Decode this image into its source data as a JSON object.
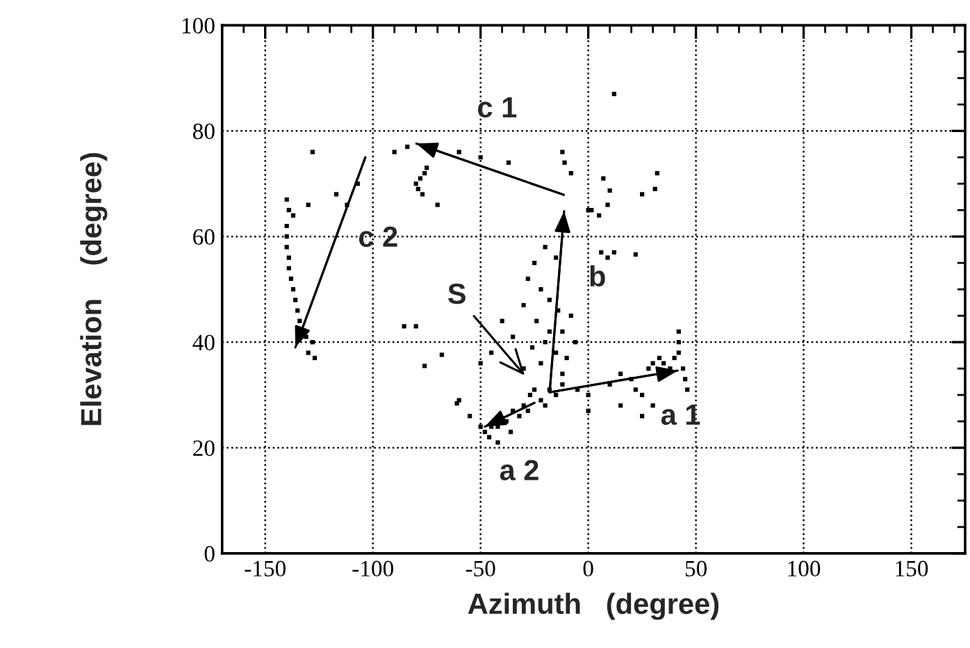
{
  "chart_data": {
    "type": "scatter",
    "xlabel": "Azimuth   (degree)",
    "ylabel": "Elevation    (degree)",
    "xlim": [
      -170,
      175
    ],
    "ylim": [
      0,
      100
    ],
    "xticks": [
      {
        "value": -170,
        "label": null
      },
      {
        "value": -160,
        "label": null
      },
      -150,
      {
        "value": -140,
        "label": null
      },
      {
        "value": -130,
        "label": null
      },
      {
        "value": -120,
        "label": null
      },
      {
        "value": -110,
        "label": null
      },
      -100,
      {
        "value": -90,
        "label": null
      },
      {
        "value": -80,
        "label": null
      },
      {
        "value": -70,
        "label": null
      },
      {
        "value": -60,
        "label": null
      },
      -50,
      {
        "value": -40,
        "label": null
      },
      {
        "value": -30,
        "label": null
      },
      {
        "value": -20,
        "label": null
      },
      {
        "value": -10,
        "label": null
      },
      0,
      {
        "value": 10,
        "label": null
      },
      {
        "value": 20,
        "label": null
      },
      {
        "value": 30,
        "label": null
      },
      {
        "value": 40,
        "label": null
      },
      50,
      {
        "value": 60,
        "label": null
      },
      {
        "value": 70,
        "label": null
      },
      {
        "value": 80,
        "label": null
      },
      {
        "value": 90,
        "label": null
      },
      100,
      {
        "value": 110,
        "label": null
      },
      {
        "value": 120,
        "label": null
      },
      {
        "value": 130,
        "label": null
      },
      {
        "value": 140,
        "label": null
      },
      150,
      {
        "value": 160,
        "label": null
      },
      {
        "value": 170,
        "label": null
      }
    ],
    "yticks": [
      0,
      {
        "value": 5,
        "label": null
      },
      {
        "value": 10,
        "label": null
      },
      {
        "value": 15,
        "label": null
      },
      20,
      {
        "value": 25,
        "label": null
      },
      {
        "value": 30,
        "label": null
      },
      {
        "value": 35,
        "label": null
      },
      40,
      {
        "value": 45,
        "label": null
      },
      {
        "value": 50,
        "label": null
      },
      {
        "value": 55,
        "label": null
      },
      60,
      {
        "value": 65,
        "label": null
      },
      {
        "value": 70,
        "label": null
      },
      {
        "value": 75,
        "label": null
      },
      80,
      {
        "value": 85,
        "label": null
      },
      {
        "value": 90,
        "label": null
      },
      {
        "value": 95,
        "label": null
      },
      100
    ],
    "grid": true,
    "series": [
      {
        "color": "#000000",
        "marker": "square",
        "x": [
          -140,
          -139,
          -140,
          -140,
          -140,
          -139,
          -139,
          -138,
          -137,
          -136,
          -135,
          -134,
          -131,
          -128,
          -130,
          -127,
          -137,
          -130,
          -112,
          -117,
          -128,
          -107,
          -90,
          -84,
          -75,
          -78,
          -80,
          -79,
          -77,
          -76,
          -70,
          -60,
          -50,
          -37,
          -85.5,
          -80,
          -68,
          -76,
          -61,
          -12,
          -11,
          -8,
          12,
          7,
          10,
          9,
          1.5,
          0,
          5,
          32,
          31,
          25,
          6,
          9,
          12,
          22,
          -20,
          -25,
          -28,
          -15,
          -22,
          -18,
          -14,
          -30,
          -24,
          -18,
          -12,
          -20,
          -26,
          -15,
          -10,
          -22,
          -30,
          -12,
          -8,
          -6,
          -35,
          -40,
          -45,
          -50,
          -25,
          -22,
          -20,
          -28,
          -30,
          -32,
          -35,
          -38,
          -42,
          -45,
          -48,
          -50,
          -46,
          -42,
          -36,
          -27,
          -18,
          -15,
          -12,
          -55,
          -60,
          -5,
          0,
          10,
          15,
          20,
          22,
          25,
          28,
          30,
          33,
          35,
          38,
          40,
          42,
          44,
          45,
          42,
          42,
          30,
          25,
          0,
          15,
          46
        ],
        "values": [
          67,
          65,
          62,
          60,
          58,
          56,
          54,
          52,
          50,
          48,
          46,
          44,
          41,
          40,
          38,
          37,
          64,
          66,
          66,
          68,
          76,
          70,
          76,
          77,
          73,
          71,
          70,
          69,
          68,
          72,
          66,
          76,
          75,
          74,
          43,
          43,
          37.6,
          35.5,
          28.4,
          76,
          74,
          72,
          87,
          71,
          68.7,
          66,
          65,
          65,
          64,
          72,
          69,
          68,
          57,
          56,
          57,
          56.6,
          58,
          55,
          52,
          56,
          50,
          48,
          46,
          47,
          44,
          42,
          42,
          40,
          39,
          38,
          37,
          36,
          35,
          34,
          45,
          40,
          41,
          44,
          38,
          36,
          31,
          29,
          28,
          27,
          28,
          26,
          27,
          25,
          24,
          24,
          23,
          24,
          22,
          21,
          23,
          30,
          31,
          30,
          32,
          26,
          29,
          31,
          30,
          32,
          34,
          33,
          31,
          30,
          35,
          36,
          37,
          36,
          35,
          37,
          38,
          35,
          33,
          40,
          42,
          28,
          26,
          27,
          28,
          31
        ]
      },
      {
        "type": "line",
        "color": "#000000",
        "x": [
          -11.4,
          -79.8
        ],
        "values": [
          67.9,
          77.6
        ]
      },
      {
        "type": "line",
        "color": "#000000",
        "x": [
          -103.5,
          -136
        ],
        "values": [
          75,
          39
        ]
      },
      {
        "type": "line",
        "color": "#000000",
        "x": [
          -17.9,
          -11.2
        ],
        "values": [
          30.6,
          64.8
        ]
      },
      {
        "type": "line",
        "color": "#000000",
        "x": [
          -18,
          41.5
        ],
        "values": [
          30.5,
          34.6
        ]
      },
      {
        "type": "line",
        "color": "#000000",
        "x": [
          -25,
          -48
        ],
        "values": [
          28.5,
          24
        ]
      }
    ],
    "annotations": [
      "c 1",
      "c 2",
      {
        "text": "S",
        "x": -29.5,
        "y": 33.7
      },
      "b",
      "a 1",
      "a 2"
    ]
  }
}
